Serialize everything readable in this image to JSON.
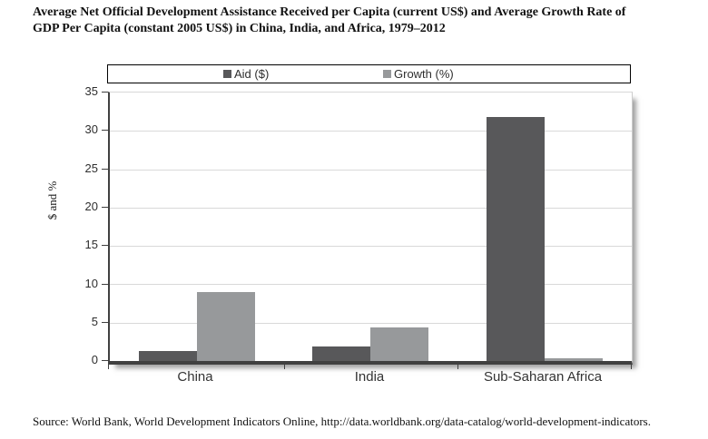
{
  "title_line1": "Average Net Official Development Assistance Received per Capita (current US$) and Average Growth Rate of",
  "title_line2": "GDP Per Capita (constant 2005 US$) in China, India, and Africa, 1979–2012",
  "source": "Source: World Bank, World Development Indicators Online, http://data.worldbank.org/data-catalog/world-development-indicators.",
  "chart_data": {
    "type": "bar",
    "categories": [
      "China",
      "India",
      "Sub-Saharan Africa"
    ],
    "series": [
      {
        "name": "Aid ($)",
        "color": "#58585a",
        "values": [
          1.3,
          1.9,
          31.8
        ]
      },
      {
        "name": "Growth (%)",
        "color": "#97999b",
        "values": [
          9.0,
          4.4,
          0.3
        ]
      }
    ],
    "title": "Average Net Official Development Assistance Received per Capita (current US$) and Average Growth Rate of GDP Per Capita (constant 2005 US$) in China, India, and Africa, 1979–2012",
    "xlabel": "",
    "ylabel": "$ and %",
    "ylim": [
      0,
      35
    ],
    "yticks": [
      "0",
      "5",
      "10",
      "15",
      "20",
      "25",
      "30",
      "35"
    ],
    "grid": true,
    "legend_position": "top"
  }
}
